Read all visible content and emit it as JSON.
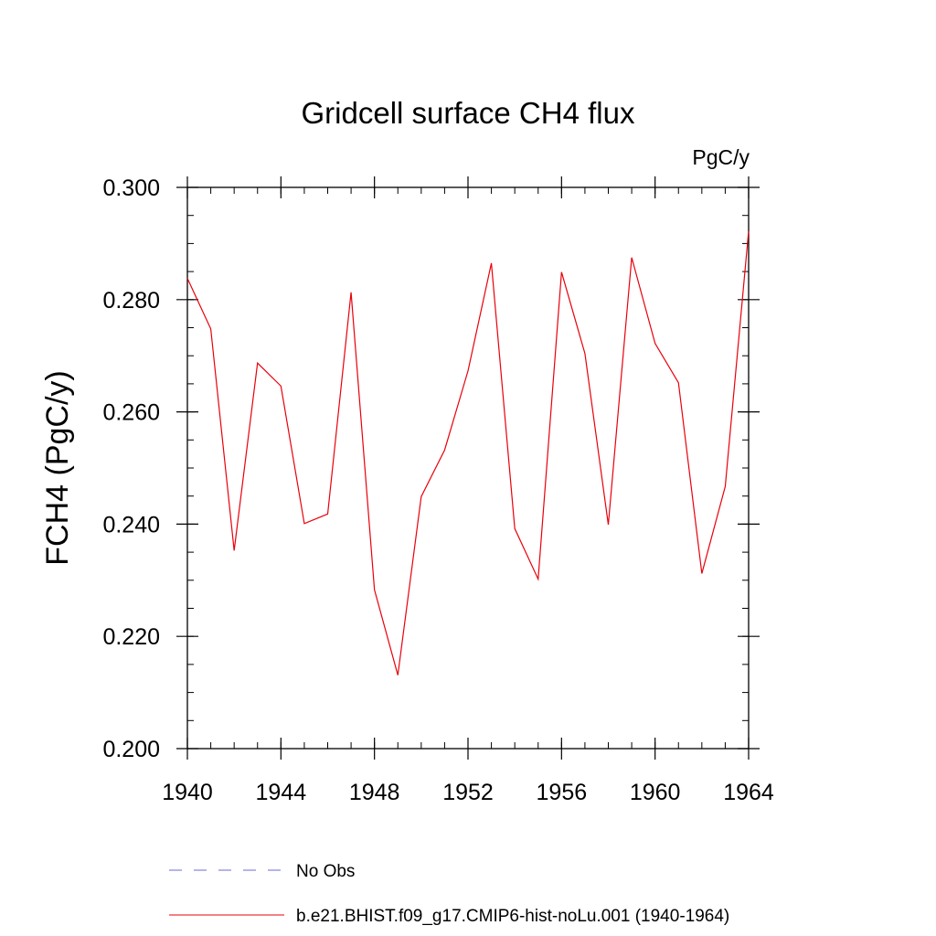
{
  "chart_data": {
    "type": "line",
    "title": "Gridcell surface CH4 flux",
    "units_label": "PgC/y",
    "ylabel": "FCH4  (PgC/y)",
    "xlabel": "",
    "xlim": [
      1940,
      1964
    ],
    "ylim": [
      0.2,
      0.3
    ],
    "x_ticks": [
      1940,
      1944,
      1948,
      1952,
      1956,
      1960,
      1964
    ],
    "y_ticks": [
      "0.200",
      "0.220",
      "0.240",
      "0.260",
      "0.280",
      "0.300"
    ],
    "y_tick_values": [
      0.2,
      0.22,
      0.24,
      0.26,
      0.28,
      0.3
    ],
    "grid": false,
    "legend_position": "bottom",
    "x": [
      1940,
      1941,
      1942,
      1943,
      1944,
      1945,
      1946,
      1947,
      1948,
      1949,
      1950,
      1951,
      1952,
      1953,
      1954,
      1955,
      1956,
      1957,
      1958,
      1959,
      1960,
      1961,
      1962,
      1963,
      1964
    ],
    "series": [
      {
        "name": "b.e21.BHIST.f09_g17.CMIP6-hist-noLu.001 (1940-1964)",
        "color": "#e8000b",
        "dash": "solid",
        "values": [
          0.2838,
          0.2748,
          0.2353,
          0.2687,
          0.2646,
          0.2401,
          0.2418,
          0.2813,
          0.2283,
          0.2131,
          0.2449,
          0.2532,
          0.2673,
          0.2865,
          0.2392,
          0.2302,
          0.2849,
          0.2704,
          0.2399,
          0.2875,
          0.2722,
          0.2652,
          0.2312,
          0.2467,
          0.2922
        ]
      }
    ],
    "legend": [
      {
        "label": "No Obs",
        "color": "#6a6ad8",
        "dash": "dashed"
      },
      {
        "label": "b.e21.BHIST.f09_g17.CMIP6-hist-noLu.001 (1940-1964)",
        "color": "#e8000b",
        "dash": "solid"
      }
    ]
  }
}
